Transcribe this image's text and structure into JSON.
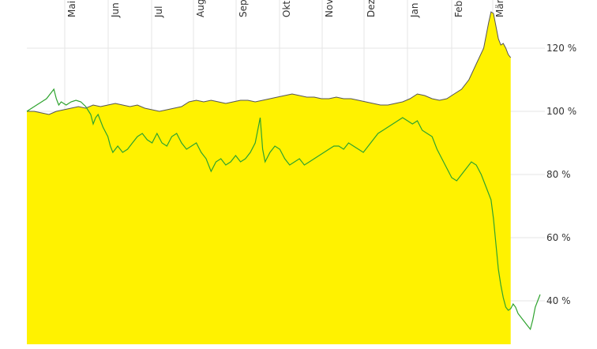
{
  "chart_data": {
    "type": "area",
    "x_labels": [
      "Mai",
      "Jun",
      "Jul",
      "Aug",
      "Sep",
      "Okt",
      "Nov",
      "Dez",
      "Jan",
      "Feb",
      "Mär"
    ],
    "y_ticks": [
      40,
      60,
      80,
      100,
      120
    ],
    "y_tick_labels": [
      "40 %",
      "60 %",
      "80 %",
      "100 %",
      "120 %"
    ],
    "ylim": [
      27,
      135
    ],
    "grid": true,
    "legend": "none",
    "series": [
      {
        "style": "area",
        "color": "#fff200",
        "line_color": "#555555",
        "points": [
          [
            0,
            100
          ],
          [
            3,
            100
          ],
          [
            6,
            99.5
          ],
          [
            9,
            99
          ],
          [
            12,
            100
          ],
          [
            15,
            100.5
          ],
          [
            18,
            101
          ],
          [
            21,
            101.5
          ],
          [
            24,
            101
          ],
          [
            27,
            102
          ],
          [
            30,
            101.5
          ],
          [
            33,
            102
          ],
          [
            36,
            102.5
          ],
          [
            39,
            102
          ],
          [
            42,
            101.5
          ],
          [
            45,
            102
          ],
          [
            48,
            101
          ],
          [
            51,
            100.5
          ],
          [
            54,
            100
          ],
          [
            57,
            100.5
          ],
          [
            60,
            101
          ],
          [
            63,
            101.5
          ],
          [
            66,
            103
          ],
          [
            69,
            103.5
          ],
          [
            72,
            103
          ],
          [
            75,
            103.5
          ],
          [
            78,
            103
          ],
          [
            81,
            102.5
          ],
          [
            84,
            103
          ],
          [
            87,
            103.5
          ],
          [
            90,
            103.5
          ],
          [
            93,
            103
          ],
          [
            96,
            103.5
          ],
          [
            99,
            104
          ],
          [
            102,
            104.5
          ],
          [
            105,
            105
          ],
          [
            108,
            105.5
          ],
          [
            111,
            105
          ],
          [
            114,
            104.5
          ],
          [
            117,
            104.5
          ],
          [
            120,
            104
          ],
          [
            123,
            104
          ],
          [
            126,
            104.5
          ],
          [
            129,
            104
          ],
          [
            132,
            104
          ],
          [
            135,
            103.5
          ],
          [
            138,
            103
          ],
          [
            141,
            102.5
          ],
          [
            144,
            102
          ],
          [
            147,
            102
          ],
          [
            150,
            102.5
          ],
          [
            153,
            103
          ],
          [
            156,
            104
          ],
          [
            159,
            105.5
          ],
          [
            162,
            105
          ],
          [
            165,
            104
          ],
          [
            168,
            103.5
          ],
          [
            171,
            104
          ],
          [
            174,
            105.5
          ],
          [
            177,
            107
          ],
          [
            180,
            110
          ],
          [
            183,
            115
          ],
          [
            186,
            120
          ],
          [
            187,
            124
          ],
          [
            188,
            128
          ],
          [
            189,
            131.5
          ],
          [
            190,
            131
          ],
          [
            191,
            127
          ],
          [
            192,
            123
          ],
          [
            193,
            121
          ],
          [
            194,
            121.5
          ],
          [
            195,
            120
          ],
          [
            196,
            118
          ],
          [
            197,
            117
          ]
        ]
      },
      {
        "style": "line",
        "color": "#2ea32e",
        "points": [
          [
            0,
            100
          ],
          [
            2,
            101
          ],
          [
            4,
            102
          ],
          [
            6,
            103
          ],
          [
            8,
            104
          ],
          [
            10,
            106
          ],
          [
            11,
            107
          ],
          [
            12,
            104
          ],
          [
            13,
            102
          ],
          [
            14,
            103
          ],
          [
            16,
            102
          ],
          [
            18,
            103
          ],
          [
            20,
            103.5
          ],
          [
            22,
            103
          ],
          [
            24,
            101.5
          ],
          [
            26,
            99
          ],
          [
            27,
            96
          ],
          [
            28,
            98
          ],
          [
            29,
            99
          ],
          [
            31,
            95
          ],
          [
            33,
            92
          ],
          [
            34,
            89
          ],
          [
            35,
            87
          ],
          [
            37,
            89
          ],
          [
            39,
            87
          ],
          [
            41,
            88
          ],
          [
            43,
            90
          ],
          [
            45,
            92
          ],
          [
            47,
            93
          ],
          [
            49,
            91
          ],
          [
            51,
            90
          ],
          [
            53,
            93
          ],
          [
            55,
            90
          ],
          [
            57,
            89
          ],
          [
            59,
            92
          ],
          [
            61,
            93
          ],
          [
            63,
            90
          ],
          [
            65,
            88
          ],
          [
            67,
            89
          ],
          [
            69,
            90
          ],
          [
            71,
            87
          ],
          [
            73,
            85
          ],
          [
            75,
            81
          ],
          [
            77,
            84
          ],
          [
            79,
            85
          ],
          [
            81,
            83
          ],
          [
            83,
            84
          ],
          [
            85,
            86
          ],
          [
            87,
            84
          ],
          [
            89,
            85
          ],
          [
            91,
            87
          ],
          [
            93,
            90
          ],
          [
            95,
            98
          ],
          [
            96,
            88
          ],
          [
            97,
            84
          ],
          [
            99,
            87
          ],
          [
            101,
            89
          ],
          [
            103,
            88
          ],
          [
            105,
            85
          ],
          [
            107,
            83
          ],
          [
            109,
            84
          ],
          [
            111,
            85
          ],
          [
            113,
            83
          ],
          [
            115,
            84
          ],
          [
            117,
            85
          ],
          [
            119,
            86
          ],
          [
            121,
            87
          ],
          [
            123,
            88
          ],
          [
            125,
            89
          ],
          [
            127,
            89
          ],
          [
            129,
            88
          ],
          [
            131,
            90
          ],
          [
            133,
            89
          ],
          [
            135,
            88
          ],
          [
            137,
            87
          ],
          [
            139,
            89
          ],
          [
            141,
            91
          ],
          [
            143,
            93
          ],
          [
            145,
            94
          ],
          [
            147,
            95
          ],
          [
            149,
            96
          ],
          [
            151,
            97
          ],
          [
            153,
            98
          ],
          [
            155,
            97
          ],
          [
            157,
            96
          ],
          [
            159,
            97
          ],
          [
            161,
            94
          ],
          [
            163,
            93
          ],
          [
            165,
            92
          ],
          [
            167,
            88
          ],
          [
            169,
            85
          ],
          [
            171,
            82
          ],
          [
            173,
            79
          ],
          [
            175,
            78
          ],
          [
            177,
            80
          ],
          [
            179,
            82
          ],
          [
            181,
            84
          ],
          [
            183,
            83
          ],
          [
            185,
            80
          ],
          [
            187,
            76
          ],
          [
            189,
            72
          ],
          [
            190,
            66
          ],
          [
            191,
            58
          ],
          [
            192,
            50
          ],
          [
            193,
            45
          ],
          [
            194,
            41
          ],
          [
            195,
            38
          ],
          [
            196,
            37
          ],
          [
            197,
            37.5
          ],
          [
            198,
            39
          ],
          [
            199,
            38
          ],
          [
            200,
            36
          ],
          [
            201,
            35
          ],
          [
            202,
            34
          ],
          [
            203,
            33
          ],
          [
            204,
            32
          ],
          [
            205,
            31
          ],
          [
            206,
            34
          ],
          [
            207,
            38
          ],
          [
            208,
            40
          ],
          [
            209,
            42
          ]
        ]
      }
    ]
  }
}
